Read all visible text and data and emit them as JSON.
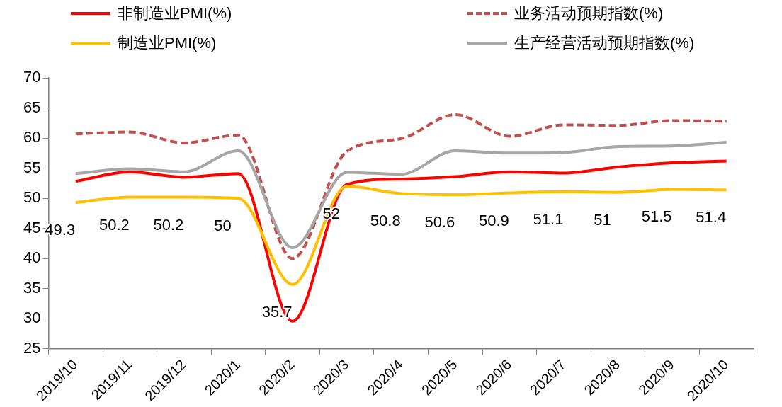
{
  "chart_data": {
    "type": "line",
    "categories": [
      "2019/10",
      "2019/11",
      "2019/12",
      "2020/1",
      "2020/2",
      "2020/3",
      "2020/4",
      "2020/5",
      "2020/6",
      "2020/7",
      "2020/8",
      "2020/9",
      "2020/10"
    ],
    "series": [
      {
        "name": "非制造业PMI(%)",
        "color": "#ff0000",
        "values": [
          52.8,
          54.4,
          53.5,
          54.1,
          29.6,
          52.3,
          53.2,
          53.6,
          54.4,
          54.2,
          55.2,
          55.9,
          56.2
        ]
      },
      {
        "name": "业务活动预期指数(%)",
        "color": "#c0504d",
        "line_style": "dashed",
        "values": [
          60.7,
          61.0,
          59.2,
          60.5,
          40.0,
          57.8,
          59.9,
          63.9,
          60.3,
          62.2,
          62.1,
          62.9,
          62.8
        ]
      },
      {
        "name": "制造业PMI(%)",
        "color": "#ffc000",
        "values": [
          49.3,
          50.2,
          50.2,
          50,
          35.7,
          52,
          50.8,
          50.6,
          50.9,
          51.1,
          51,
          51.5,
          51.4
        ],
        "value_labels": [
          "49.3",
          "50.2",
          "50.2",
          "50",
          "35.7",
          "52",
          "50.8",
          "50.6",
          "50.9",
          "51.1",
          "51",
          "51.5",
          "51.4"
        ]
      },
      {
        "name": "生产经营活动预期指数(%)",
        "color": "#a6a6a6",
        "values": [
          54.1,
          54.9,
          54.4,
          57.9,
          41.8,
          54.3,
          54.0,
          57.9,
          57.5,
          57.6,
          58.6,
          58.7,
          59.3
        ]
      }
    ],
    "ylim": [
      25,
      70
    ],
    "yticks": [
      25,
      30,
      35,
      40,
      45,
      50,
      55,
      60,
      65,
      70
    ],
    "grid": false,
    "legend": "top",
    "marker": "none",
    "line_style": "solid"
  }
}
